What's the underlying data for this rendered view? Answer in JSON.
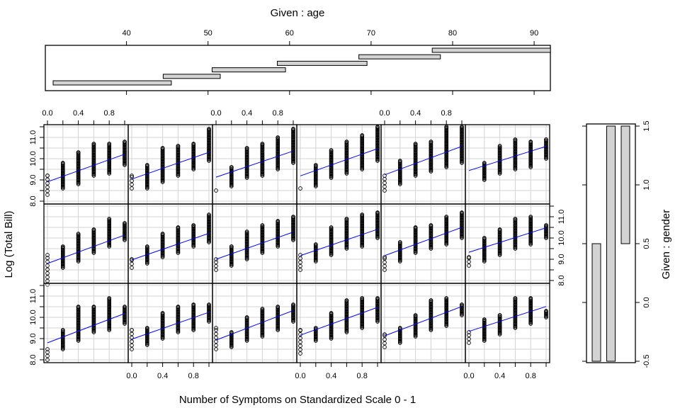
{
  "chart_data": {
    "type": "scatter",
    "kind": "coplot",
    "xlabel": "Number of Symptoms on Standardized Scale 0 - 1",
    "ylabel": "Log (Total Bill)",
    "xlim": [
      0,
      1
    ],
    "ylim": [
      8.0,
      11.5
    ],
    "x_ticks": [
      0,
      0.2,
      0.4,
      0.6,
      0.8,
      1.0
    ],
    "x_tick_labels": [
      "0.0",
      "0.4",
      "0.8"
    ],
    "x_tick_label_values": [
      0,
      0.4,
      0.8
    ],
    "y_ticks": [
      8.0,
      8.5,
      9.0,
      9.5,
      10.0,
      10.5,
      11.0,
      11.5
    ],
    "y_tick_labels": [
      "8.0",
      "9.0",
      "10.0",
      "11.0"
    ],
    "y_tick_label_values": [
      8,
      9,
      10,
      11
    ],
    "grid": true,
    "line_color": "#0000ff",
    "given_age": {
      "title": "Given : age",
      "range": [
        31,
        93
      ],
      "ticks": [
        40,
        50,
        60,
        70,
        80,
        90
      ],
      "tick_labels": [
        "40",
        "50",
        "60",
        "70",
        "80",
        "90"
      ],
      "intervals": [
        [
          31,
          45.5
        ],
        [
          44.5,
          51.5
        ],
        [
          50.5,
          59.5
        ],
        [
          58.5,
          69.5
        ],
        [
          68.5,
          78.5
        ],
        [
          77.5,
          92
        ]
      ]
    },
    "given_gender": {
      "title": "Given : gender",
      "range": [
        -0.5,
        1.5
      ],
      "ticks": [
        -0.5,
        0.0,
        0.5,
        1.0,
        1.5
      ],
      "tick_labels": [
        "-0.5",
        "0.0",
        "0.5",
        "1.0",
        "1.5"
      ],
      "intervals": [
        [
          -0.5,
          0.5
        ],
        [
          -0.5,
          1.5
        ],
        [
          0.5,
          1.5
        ]
      ]
    },
    "panels_note": "rows listed top to bottom (gender interval 3,2,1); columns left to right (age interval 1-6); ranges are [min,max] of points at x = 0,0.2,...,1.0",
    "rows": [
      [
        {
          "intercept": 8.91,
          "slope": 1.3,
          "ranges": [
            [
              8.3,
              9.2
            ],
            [
              8.6,
              9.8
            ],
            [
              8.8,
              10.3
            ],
            [
              9.2,
              10.7
            ],
            [
              9.3,
              10.7
            ],
            [
              9.7,
              10.8
            ]
          ]
        },
        {
          "intercept": 9.04,
          "slope": 1.26,
          "ranges": [
            [
              8.6,
              9.2
            ],
            [
              8.6,
              9.7
            ],
            [
              8.9,
              10.5
            ],
            [
              9.2,
              10.6
            ],
            [
              9.5,
              10.7
            ],
            [
              9.9,
              11.4
            ]
          ]
        },
        {
          "intercept": 9.13,
          "slope": 1.23,
          "ranges": [
            [
              8.5,
              8.5
            ],
            [
              8.7,
              9.6
            ],
            [
              9.1,
              10.5
            ],
            [
              9.2,
              10.7
            ],
            [
              9.5,
              11.0
            ],
            [
              9.8,
              11.4
            ]
          ]
        },
        {
          "intercept": 9.19,
          "slope": 1.28,
          "ranges": [
            [
              8.6,
              8.6
            ],
            [
              8.7,
              9.7
            ],
            [
              9.1,
              10.4
            ],
            [
              9.3,
              10.8
            ],
            [
              9.5,
              11.1
            ],
            [
              9.9,
              11.5
            ]
          ]
        },
        {
          "intercept": 9.24,
          "slope": 1.34,
          "ranges": [
            [
              8.5,
              9.2
            ],
            [
              8.8,
              9.9
            ],
            [
              9.2,
              10.7
            ],
            [
              9.4,
              10.8
            ],
            [
              9.6,
              11.5
            ],
            [
              9.8,
              11.5
            ]
          ]
        },
        {
          "intercept": 9.44,
          "slope": 1.14,
          "ranges": [
            [],
            [
              9.0,
              9.8
            ],
            [
              9.3,
              10.6
            ],
            [
              9.5,
              10.9
            ],
            [
              9.6,
              10.8
            ],
            [
              10.0,
              10.9
            ]
          ]
        }
      ],
      [
        {
          "intercept": 8.8,
          "slope": 1.34,
          "ranges": [
            [
              7.8,
              9.2
            ],
            [
              8.6,
              9.6
            ],
            [
              8.9,
              10.2
            ],
            [
              9.3,
              10.4
            ],
            [
              9.6,
              10.9
            ],
            [
              9.9,
              10.7
            ]
          ]
        },
        {
          "intercept": 8.97,
          "slope": 1.25,
          "ranges": [
            [
              8.6,
              9.0
            ],
            [
              8.8,
              9.6
            ],
            [
              9.1,
              10.2
            ],
            [
              9.3,
              10.5
            ],
            [
              9.6,
              10.6
            ],
            [
              9.8,
              11.1
            ]
          ]
        },
        {
          "intercept": 9.0,
          "slope": 1.28,
          "ranges": [
            [
              8.5,
              9.0
            ],
            [
              8.7,
              9.6
            ],
            [
              9.0,
              10.3
            ],
            [
              9.3,
              10.6
            ],
            [
              9.6,
              10.8
            ],
            [
              9.9,
              11.0
            ]
          ]
        },
        {
          "intercept": 9.17,
          "slope": 1.24,
          "ranges": [
            [
              8.5,
              9.2
            ],
            [
              8.9,
              9.7
            ],
            [
              9.2,
              10.5
            ],
            [
              9.5,
              10.9
            ],
            [
              9.6,
              11.1
            ],
            [
              10.0,
              11.2
            ]
          ]
        },
        {
          "intercept": 9.17,
          "slope": 1.33,
          "ranges": [
            [
              8.5,
              9.1
            ],
            [
              8.9,
              9.8
            ],
            [
              9.3,
              10.5
            ],
            [
              9.5,
              10.6
            ],
            [
              9.7,
              11.0
            ],
            [
              10.0,
              11.2
            ]
          ]
        },
        {
          "intercept": 9.33,
          "slope": 1.15,
          "ranges": [
            [
              8.7,
              9.1
            ],
            [
              8.9,
              10.0
            ],
            [
              9.2,
              10.4
            ],
            [
              9.5,
              10.9
            ],
            [
              9.7,
              11.0
            ],
            [
              10.0,
              10.6
            ]
          ]
        }
      ],
      [
        {
          "intercept": 8.8,
          "slope": 1.38,
          "ranges": [
            [
              8.0,
              8.5
            ],
            [
              8.5,
              9.4
            ],
            [
              8.9,
              10.5
            ],
            [
              9.3,
              10.5
            ],
            [
              9.4,
              10.9
            ],
            [
              9.7,
              10.5
            ]
          ]
        },
        {
          "intercept": 8.97,
          "slope": 1.27,
          "ranges": [
            [
              8.5,
              9.4
            ],
            [
              8.7,
              9.5
            ],
            [
              9.0,
              10.2
            ],
            [
              9.3,
              10.5
            ],
            [
              9.4,
              10.6
            ],
            [
              9.8,
              10.6
            ]
          ]
        },
        {
          "intercept": 8.93,
          "slope": 1.39,
          "ranges": [
            [
              8.5,
              9.5
            ],
            [
              8.6,
              9.3
            ],
            [
              8.9,
              10.0
            ],
            [
              9.1,
              10.4
            ],
            [
              9.4,
              10.5
            ],
            [
              9.8,
              10.6
            ]
          ]
        },
        {
          "intercept": 9.16,
          "slope": 1.31,
          "ranges": [
            [
              8.3,
              9.4
            ],
            [
              8.9,
              9.5
            ],
            [
              9.0,
              10.2
            ],
            [
              9.3,
              10.8
            ],
            [
              9.5,
              10.9
            ],
            [
              9.8,
              10.9
            ]
          ]
        },
        {
          "intercept": 9.13,
          "slope": 1.38,
          "ranges": [
            [
              8.6,
              9.2
            ],
            [
              8.8,
              9.5
            ],
            [
              9.1,
              10.1
            ],
            [
              9.4,
              10.8
            ],
            [
              9.6,
              10.9
            ],
            [
              10.1,
              10.6
            ]
          ]
        },
        {
          "intercept": 9.34,
          "slope": 1.17,
          "ranges": [
            [
              8.8,
              9.3
            ],
            [
              8.9,
              9.9
            ],
            [
              9.2,
              10.1
            ],
            [
              9.5,
              10.9
            ],
            [
              9.7,
              10.9
            ],
            [
              10.0,
              10.3
            ]
          ]
        }
      ]
    ]
  }
}
